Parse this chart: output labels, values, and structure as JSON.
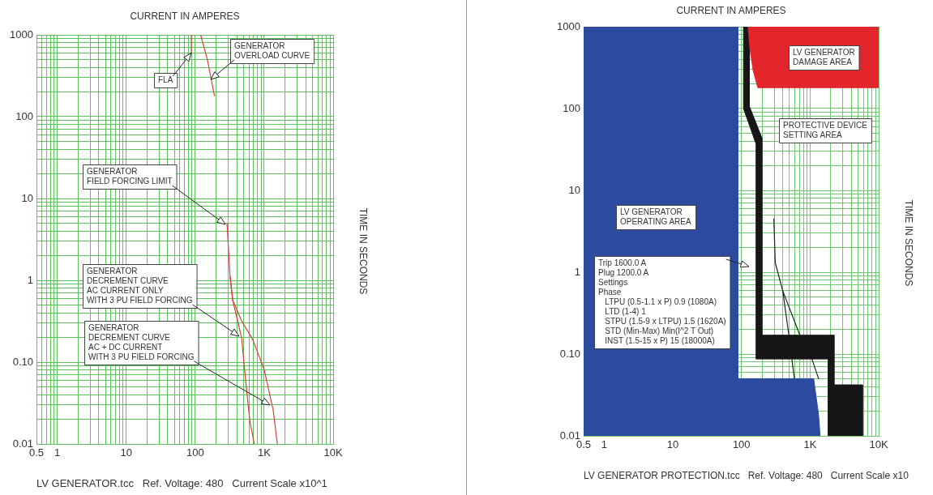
{
  "chart_data": [
    {
      "type": "line",
      "xlabel": "CURRENT IN AMPERES",
      "ylabel": "TIME IN SECONDS",
      "log": "xy",
      "xlim": [
        0.5,
        10000
      ],
      "ylim": [
        0.01,
        1000
      ],
      "xticks": [
        0.5,
        {
          "value": 0.6,
          "label": null
        },
        {
          "value": 0.7,
          "label": null
        },
        {
          "value": 0.8,
          "label": null
        },
        {
          "value": 0.9,
          "label": null
        },
        1,
        {
          "value": 2,
          "label": null
        },
        {
          "value": 3,
          "label": null
        },
        {
          "value": 4,
          "label": null
        },
        {
          "value": 5,
          "label": null
        },
        {
          "value": 6,
          "label": null
        },
        {
          "value": 7,
          "label": null
        },
        {
          "value": 8,
          "label": null
        },
        {
          "value": 9,
          "label": null
        },
        10,
        {
          "value": 20,
          "label": null
        },
        {
          "value": 30,
          "label": null
        },
        {
          "value": 40,
          "label": null
        },
        {
          "value": 50,
          "label": null
        },
        {
          "value": 60,
          "label": null
        },
        {
          "value": 70,
          "label": null
        },
        {
          "value": 80,
          "label": null
        },
        {
          "value": 90,
          "label": null
        },
        100,
        {
          "value": 200,
          "label": null
        },
        {
          "value": 300,
          "label": null
        },
        {
          "value": 400,
          "label": null
        },
        {
          "value": 500,
          "label": null
        },
        {
          "value": 600,
          "label": null
        },
        {
          "value": 700,
          "label": null
        },
        {
          "value": 800,
          "label": null
        },
        {
          "value": 900,
          "label": null
        },
        {
          "value": 1000,
          "label": "1K"
        },
        {
          "value": 2000,
          "label": null
        },
        {
          "value": 3000,
          "label": null
        },
        {
          "value": 4000,
          "label": null
        },
        {
          "value": 5000,
          "label": null
        },
        {
          "value": 6000,
          "label": null
        },
        {
          "value": 7000,
          "label": null
        },
        {
          "value": 8000,
          "label": null
        },
        {
          "value": 9000,
          "label": null
        },
        {
          "value": 10000,
          "label": "10K"
        }
      ],
      "yticks": [
        0.01,
        {
          "value": 0.02,
          "label": null
        },
        {
          "value": 0.03,
          "label": null
        },
        {
          "value": 0.04,
          "label": null
        },
        {
          "value": 0.05,
          "label": null
        },
        {
          "value": 0.06,
          "label": null
        },
        {
          "value": 0.07,
          "label": null
        },
        {
          "value": 0.08,
          "label": null
        },
        {
          "value": 0.09,
          "label": null
        },
        {
          "value": 0.1,
          "label": "0.10"
        },
        {
          "value": 0.2,
          "label": null
        },
        {
          "value": 0.3,
          "label": null
        },
        {
          "value": 0.4,
          "label": null
        },
        {
          "value": 0.5,
          "label": null
        },
        {
          "value": 0.6,
          "label": null
        },
        {
          "value": 0.7,
          "label": null
        },
        {
          "value": 0.8,
          "label": null
        },
        {
          "value": 0.9,
          "label": null
        },
        1,
        {
          "value": 2,
          "label": null
        },
        {
          "value": 3,
          "label": null
        },
        {
          "value": 4,
          "label": null
        },
        {
          "value": 5,
          "label": null
        },
        {
          "value": 6,
          "label": null
        },
        {
          "value": 7,
          "label": null
        },
        {
          "value": 8,
          "label": null
        },
        {
          "value": 9,
          "label": null
        },
        10,
        {
          "value": 20,
          "label": null
        },
        {
          "value": 30,
          "label": null
        },
        {
          "value": 40,
          "label": null
        },
        {
          "value": 50,
          "label": null
        },
        {
          "value": 60,
          "label": null
        },
        {
          "value": 70,
          "label": null
        },
        {
          "value": 80,
          "label": null
        },
        {
          "value": 90,
          "label": null
        },
        100,
        {
          "value": 200,
          "label": null
        },
        {
          "value": 300,
          "label": null
        },
        {
          "value": 400,
          "label": null
        },
        {
          "value": 500,
          "label": null
        },
        {
          "value": 600,
          "label": null
        },
        {
          "value": 700,
          "label": null
        },
        {
          "value": 800,
          "label": null
        },
        {
          "value": 900,
          "label": null
        },
        1000
      ],
      "grid": true,
      "marker": "none",
      "series": [
        {
          "color": "#d9403a",
          "x": [
            88,
            88
          ],
          "values": [
            1000,
            600
          ]
        },
        {
          "color": "#d9403a",
          "x": [
            120,
            150,
            190
          ],
          "values": [
            1000,
            500,
            180
          ]
        },
        {
          "color": "#d9403a",
          "x": [
            290,
            290,
            320,
            350,
            470,
            540,
            620,
            720
          ],
          "values": [
            5,
            4.8,
            1.12,
            0.57,
            0.2,
            0.059,
            0.019,
            0.01
          ]
        },
        {
          "color": "#d9403a",
          "x": [
            320,
            350,
            470,
            680,
            1000,
            1350,
            1550
          ],
          "values": [
            1.12,
            0.57,
            0.32,
            0.19,
            0.081,
            0.026,
            0.01
          ]
        }
      ],
      "annotations": [
        {
          "text": "FLA",
          "x": 88,
          "y": 600
        },
        "GENERATOR\nOVERLOAD CURVE",
        "GENERATOR\nFIELD FORCING LIMIT",
        "GENERATOR\nDECREMENT CURVE\nAC CURRENT ONLY\nWITH 3 PU FIELD FORCING",
        "GENERATOR\nDECREMENT CURVE\nAC + DC CURRENT\nWITH 3 PU FIELD FORCING",
        "LV GENERATOR.tcc   Ref. Voltage: 480   Current Scale x10^1"
      ]
    },
    {
      "type": "area",
      "xlabel": "CURRENT IN AMPERES",
      "ylabel": "TIME IN SECONDS",
      "log": "xy",
      "xlim": [
        0.5,
        10000
      ],
      "ylim": [
        0.01,
        1000
      ],
      "xticks": [
        0.5,
        1,
        10,
        {
          "value": 90,
          "label": null
        },
        100,
        {
          "value": 200,
          "label": null
        },
        {
          "value": 300,
          "label": null
        },
        {
          "value": 400,
          "label": null
        },
        {
          "value": 500,
          "label": null
        },
        {
          "value": 600,
          "label": null
        },
        {
          "value": 700,
          "label": null
        },
        {
          "value": 800,
          "label": null
        },
        {
          "value": 900,
          "label": null
        },
        {
          "value": 1000,
          "label": "1K"
        },
        {
          "value": 2000,
          "label": null
        },
        {
          "value": 3000,
          "label": null
        },
        {
          "value": 4000,
          "label": null
        },
        {
          "value": 5000,
          "label": null
        },
        {
          "value": 6000,
          "label": null
        },
        {
          "value": 7000,
          "label": null
        },
        {
          "value": 8000,
          "label": null
        },
        {
          "value": 9000,
          "label": null
        },
        {
          "value": 10000,
          "label": "10K"
        }
      ],
      "yticks": [
        0.01,
        {
          "value": 0.02,
          "label": null
        },
        {
          "value": 0.03,
          "label": null
        },
        {
          "value": 0.04,
          "label": null
        },
        {
          "value": 0.05,
          "label": null
        },
        {
          "value": 0.06,
          "label": null
        },
        {
          "value": 0.07,
          "label": null
        },
        {
          "value": 0.08,
          "label": null
        },
        {
          "value": 0.09,
          "label": null
        },
        {
          "value": 0.1,
          "label": "0.10"
        },
        {
          "value": 0.2,
          "label": null
        },
        {
          "value": 0.3,
          "label": null
        },
        {
          "value": 0.4,
          "label": null
        },
        {
          "value": 0.5,
          "label": null
        },
        {
          "value": 0.6,
          "label": null
        },
        {
          "value": 0.7,
          "label": null
        },
        {
          "value": 0.8,
          "label": null
        },
        {
          "value": 0.9,
          "label": null
        },
        1,
        {
          "value": 2,
          "label": null
        },
        {
          "value": 3,
          "label": null
        },
        {
          "value": 4,
          "label": null
        },
        {
          "value": 5,
          "label": null
        },
        {
          "value": 6,
          "label": null
        },
        {
          "value": 7,
          "label": null
        },
        {
          "value": 8,
          "label": null
        },
        {
          "value": 9,
          "label": null
        },
        10,
        {
          "value": 20,
          "label": null
        },
        {
          "value": 30,
          "label": null
        },
        {
          "value": 40,
          "label": null
        },
        {
          "value": 50,
          "label": null
        },
        {
          "value": 60,
          "label": null
        },
        {
          "value": 70,
          "label": null
        },
        {
          "value": 80,
          "label": null
        },
        {
          "value": 90,
          "label": null
        },
        100,
        {
          "value": 200,
          "label": null
        },
        {
          "value": 300,
          "label": null
        },
        {
          "value": 400,
          "label": null
        },
        {
          "value": 500,
          "label": null
        },
        {
          "value": 600,
          "label": null
        },
        {
          "value": 700,
          "label": null
        },
        {
          "value": 800,
          "label": null
        },
        {
          "value": 900,
          "label": null
        },
        1000
      ],
      "grid": true,
      "marker": "none",
      "series": [
        {
          "color": "#2c4a9e",
          "x": [
            0.5,
            88,
            88,
            1130,
            1200,
            1330,
            1400,
            0.5
          ],
          "values": [
            1000,
            1000,
            0.05,
            0.05,
            0.034,
            0.018,
            0.01,
            0.01
          ]
        },
        {
          "color": "#e3262b",
          "x": [
            125,
            132,
            148,
            173,
            10000,
            10000
          ],
          "values": [
            1000,
            560,
            290,
            180,
            180,
            1000
          ]
        },
        {
          "color": "#161616",
          "x": [
            130,
            130,
            198,
            198,
            2230,
            2230,
            5800,
            5800,
            1830,
            1830,
            163,
            163,
            107,
            107
          ],
          "values": [
            1000,
            107,
            44,
            0.17,
            0.17,
            0.042,
            0.042,
            0.01,
            0.01,
            0.087,
            0.087,
            37,
            100,
            1000
          ]
        },
        {
          "type": "line",
          "color": "#222222",
          "x": [
            296,
            311,
            400,
            490,
            590
          ],
          "values": [
            4.5,
            1.3,
            0.59,
            0.17,
            0.05
          ]
        },
        {
          "type": "line",
          "color": "#222222",
          "x": [
            400,
            710,
            1040,
            1330
          ],
          "values": [
            0.59,
            0.17,
            0.092,
            0.05
          ]
        }
      ],
      "annotations": [
        "LV GENERATOR\nDAMAGE AREA",
        "PROTECTIVE DEVICE\nSETTING AREA",
        "LV GENERATOR\nOPERATING AREA",
        "Trip 1600.0 A\nPlug 1200.0 A\nSettings\nPhase\n   LTPU (0.5-1.1 x P) 0.9 (1080A)\n   LTD (1-4) 1\n   STPU (1.5-9 x LTPU) 1.5 (1620A)\n   STD (Min-Max) Min(I^2 T Out)\n   INST (1.5-15 x P) 15 (18000A)",
        "LV GENERATOR PROTECTION.tcc   Ref. Voltage: 480   Current Scale x10"
      ]
    }
  ]
}
